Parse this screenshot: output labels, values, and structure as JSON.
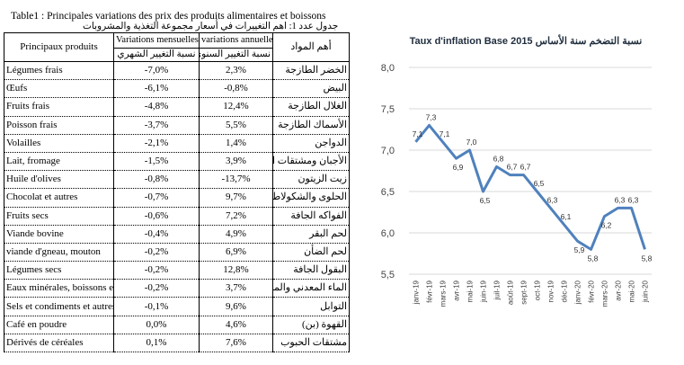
{
  "table": {
    "caption": "Table1 : Principales variations des prix des produits alimentaires et boissons",
    "caption_ar": "جدول عدد 1: اهم التغييرات في أسعار مجموعة التغذية والمشروبات",
    "headers": {
      "product": "Principaux produits",
      "monthly": "Variations mensuelles",
      "monthly_ar": "نسبة التغيير الشهري",
      "annual": "variations annuelles",
      "annual_ar": "نسبة التغيير السنوي",
      "product_ar": "أهم المواد"
    },
    "rows": [
      {
        "fr": "Légumes frais",
        "monthly": "-7,0%",
        "annual": "2,3%",
        "ar": "الخضر الطازجة"
      },
      {
        "fr": "Œufs",
        "monthly": "-6,1%",
        "annual": "-0,8%",
        "ar": "البيض"
      },
      {
        "fr": "Fruits frais",
        "monthly": "-4,8%",
        "annual": "12,4%",
        "ar": "الغلال الطازجة"
      },
      {
        "fr": "Poisson frais",
        "monthly": "-3,7%",
        "annual": "5,5%",
        "ar": "الأسماك الطازجة"
      },
      {
        "fr": "Volailles",
        "monthly": "-2,1%",
        "annual": "1,4%",
        "ar": "الدواجن"
      },
      {
        "fr": "Lait, fromage",
        "monthly": "-1,5%",
        "annual": "3,9%",
        "ar": "الأجبان ومشتقات الحليب"
      },
      {
        "fr": "Huile d'olives",
        "monthly": "-0,8%",
        "annual": "-13,7%",
        "ar": "زيت الزيتون"
      },
      {
        "fr": "Chocolat et autres",
        "monthly": "-0,7%",
        "annual": "9,7%",
        "ar": "الحلوى والشكولاطة"
      },
      {
        "fr": "Fruits secs",
        "monthly": "-0,6%",
        "annual": "7,2%",
        "ar": "الفواكه الجافة"
      },
      {
        "fr": "Viande bovine",
        "monthly": "-0,4%",
        "annual": "4,9%",
        "ar": "لحم البقر"
      },
      {
        "fr": "viande d'gneau, mouton",
        "monthly": "-0,2%",
        "annual": "6,9%",
        "ar": "لحم الضأن"
      },
      {
        "fr": "Légumes secs",
        "monthly": "-0,2%",
        "annual": "12,8%",
        "ar": "البقول الجافة"
      },
      {
        "fr": "Eaux minérales, boissons et j",
        "monthly": "-0,2%",
        "annual": "3,7%",
        "ar": "الماء المعدني والمشروبات الغ"
      },
      {
        "fr": "Sels et condiments et autres",
        "monthly": "-0,1%",
        "annual": "9,6%",
        "ar": "التوابل"
      },
      {
        "fr": "Café en poudre",
        "monthly": "0,0%",
        "annual": "4,6%",
        "ar": "القهوة (بن)"
      },
      {
        "fr": "Dérivés de céréales",
        "monthly": "0,1%",
        "annual": "7,6%",
        "ar": "مشتقات الحبوب"
      }
    ]
  },
  "chart_data": {
    "type": "line",
    "title": "Taux d'inflation Base 2015 نسبة التضخم سنة الأساس",
    "xlabel": "",
    "ylabel": "",
    "categories": [
      "janv-19",
      "févr-19",
      "mars-19",
      "avr-19",
      "mai-19",
      "juin-19",
      "juil-19",
      "août-19",
      "sept-19",
      "oct-19",
      "nov-19",
      "déc-19",
      "janv-20",
      "févr-20",
      "mars-20",
      "avr-20",
      "mai-20",
      "juin-20"
    ],
    "series": [
      {
        "values": [
          7.1,
          7.3,
          7.1,
          6.9,
          7.0,
          6.5,
          6.8,
          6.7,
          6.7,
          6.5,
          6.3,
          6.1,
          5.9,
          5.8,
          6.2,
          6.3,
          6.3,
          5.8
        ]
      }
    ],
    "data_labels": [
      "7,1",
      "7,3",
      "7,1",
      "6,9",
      "7,0",
      "6,5",
      "6,8",
      "6,7",
      "6,7",
      "6,5",
      "6,3",
      "6,1",
      "5,9",
      "5,8",
      "6,2",
      "6,3",
      "6,3",
      "5,8"
    ],
    "ylim": [
      5.5,
      8.0
    ],
    "yticks": [
      "5,5",
      "6,0",
      "6,5",
      "7,0",
      "7,5",
      "8,0"
    ],
    "grid": true,
    "line_color": "#4f81bd",
    "grid_color": "#d9d9d9"
  }
}
